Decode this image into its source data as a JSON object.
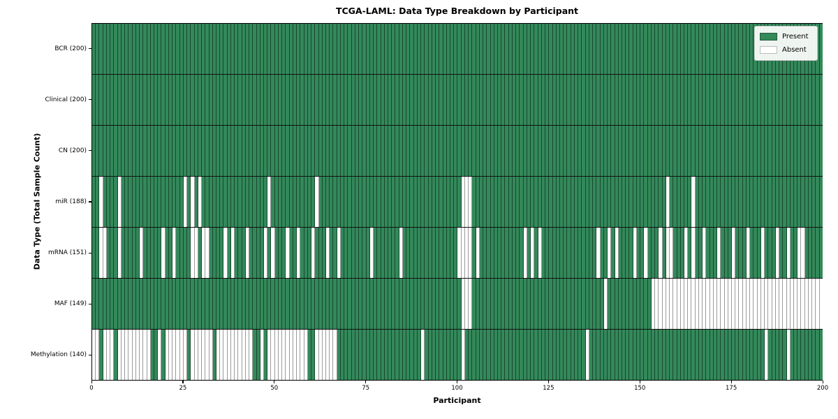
{
  "title": "TCGA-LAML: Data Type Breakdown by Participant",
  "xlabel": "Participant",
  "ylabel": "Data Type (Total Sample Count)",
  "legend": {
    "present_label": "Present",
    "absent_label": "Absent",
    "position": "upper right"
  },
  "colors": {
    "present": "#33895a",
    "absent": "#ffffff",
    "row_divider": "#111111",
    "frame": "#000000"
  },
  "chart_data": {
    "type": "heatmap",
    "title": "TCGA-LAML: Data Type Breakdown by Participant",
    "xlabel": "Participant",
    "ylabel": "Data Type (Total Sample Count)",
    "legend": [
      "Present",
      "Absent"
    ],
    "legend_position": "upper right",
    "grid": false,
    "n_participants": 200,
    "x_range": [
      0,
      200
    ],
    "x_ticks": [
      0,
      25,
      50,
      75,
      100,
      125,
      150,
      175,
      200
    ],
    "rows": [
      {
        "data_type": "BCR",
        "label": "BCR (200)",
        "present_count": 200,
        "absent_participants": []
      },
      {
        "data_type": "Clinical",
        "label": "Clinical (200)",
        "present_count": 200,
        "absent_participants": []
      },
      {
        "data_type": "CN",
        "label": "CN (200)",
        "present_count": 200,
        "absent_participants": []
      },
      {
        "data_type": "miR",
        "label": "miR (188)",
        "present_count": 188,
        "absent_participants": [
          2,
          7,
          25,
          27,
          29,
          48,
          61,
          101,
          102,
          103,
          157,
          164
        ]
      },
      {
        "data_type": "mRNA",
        "label": "mRNA (151)",
        "present_count": 151,
        "absent_participants": [
          2,
          3,
          7,
          13,
          19,
          22,
          27,
          28,
          30,
          31,
          36,
          38,
          42,
          47,
          49,
          53,
          56,
          60,
          64,
          67,
          76,
          84,
          100,
          101,
          102,
          103,
          105,
          118,
          120,
          122,
          138,
          141,
          143,
          148,
          151,
          155,
          157,
          158,
          162,
          164,
          167,
          171,
          175,
          179,
          183,
          187,
          190,
          193,
          194
        ]
      },
      {
        "data_type": "MAF",
        "label": "MAF (149)",
        "present_count": 149,
        "absent_participants": [
          101,
          102,
          103,
          140,
          153,
          154,
          155,
          156,
          157,
          158,
          159,
          160,
          161,
          162,
          163,
          164,
          165,
          166,
          167,
          168,
          169,
          170,
          171,
          172,
          173,
          174,
          175,
          176,
          177,
          178,
          179,
          180,
          181,
          182,
          183,
          184,
          185,
          186,
          187,
          188,
          189,
          190,
          191,
          192,
          193,
          194,
          195,
          196,
          197,
          198,
          199
        ]
      },
      {
        "data_type": "Methylation",
        "label": "Methylation (140)",
        "present_count": 140,
        "absent_participants": [
          0,
          1,
          3,
          4,
          5,
          7,
          8,
          9,
          10,
          11,
          12,
          13,
          14,
          15,
          18,
          20,
          21,
          22,
          23,
          24,
          25,
          27,
          28,
          29,
          30,
          31,
          32,
          34,
          35,
          36,
          37,
          38,
          39,
          40,
          41,
          42,
          43,
          46,
          48,
          49,
          50,
          51,
          52,
          53,
          54,
          55,
          56,
          57,
          58,
          61,
          62,
          63,
          64,
          65,
          66,
          90,
          101,
          135,
          184,
          190
        ]
      }
    ]
  }
}
